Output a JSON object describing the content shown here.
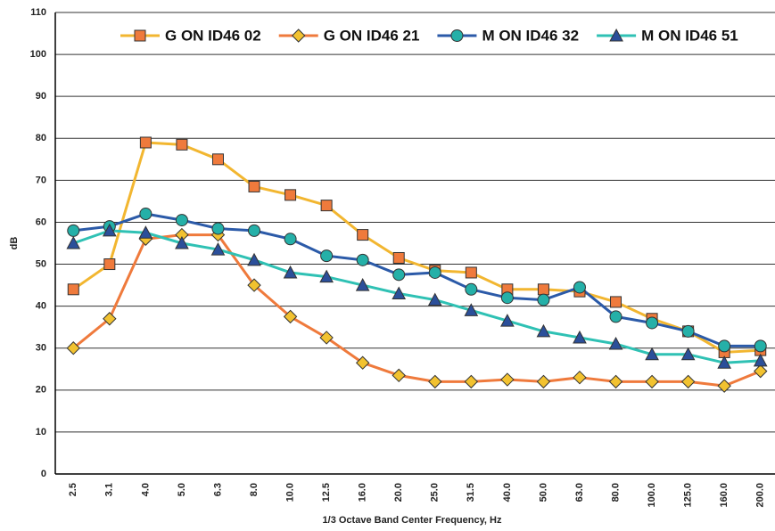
{
  "chart_data": {
    "type": "line",
    "x_label": "1/3 Octave Band Center Frequency, Hz",
    "y_label": "dB",
    "categories": [
      "2.5",
      "3.1",
      "4.0",
      "5.0",
      "6.3",
      "8.0",
      "10.0",
      "12.5",
      "16.0",
      "20.0",
      "25.0",
      "31.5",
      "40.0",
      "50.0",
      "63.0",
      "80.0",
      "100.0",
      "125.0",
      "160.0",
      "200.0"
    ],
    "series": [
      {
        "name": "G ON ID46 02",
        "color": "#f2b630",
        "marker": "square",
        "marker_color": "#ef7a3c",
        "values": [
          44,
          50,
          79,
          78.5,
          75,
          68.5,
          66.5,
          64,
          57,
          51.5,
          48.5,
          48,
          44,
          44,
          43.5,
          41,
          37,
          34,
          29,
          29.5
        ]
      },
      {
        "name": "G ON ID46 21",
        "color": "#ef7a3c",
        "marker": "diamond",
        "marker_color": "#f2c230",
        "values": [
          30,
          37,
          56,
          57,
          57,
          45,
          37.5,
          32.5,
          26.5,
          23.5,
          22,
          22,
          22.5,
          22,
          23,
          22,
          22,
          22,
          21,
          24.5
        ]
      },
      {
        "name": "M ON ID46 32",
        "color": "#2b5aa8",
        "marker": "circle",
        "marker_color": "#25b0a8",
        "values": [
          58,
          59,
          62,
          60.5,
          58.5,
          58,
          56,
          52,
          51,
          47.5,
          48,
          44,
          42,
          41.5,
          44.5,
          37.5,
          36,
          34,
          30.5,
          30.5
        ]
      },
      {
        "name": "M ON ID46 51",
        "color": "#2fc1b4",
        "marker": "triangle",
        "marker_color": "#2b4f9a",
        "values": [
          55,
          58,
          57.5,
          55,
          53.5,
          51,
          48,
          47,
          45,
          43,
          41.5,
          39,
          36.5,
          34,
          32.5,
          31,
          28.5,
          28.5,
          26.5,
          27
        ]
      }
    ],
    "ylim": [
      0,
      110
    ],
    "yticks": [
      0,
      10,
      20,
      30,
      40,
      50,
      60,
      70,
      80,
      90,
      100,
      110
    ],
    "grid": true,
    "legend": "top"
  }
}
